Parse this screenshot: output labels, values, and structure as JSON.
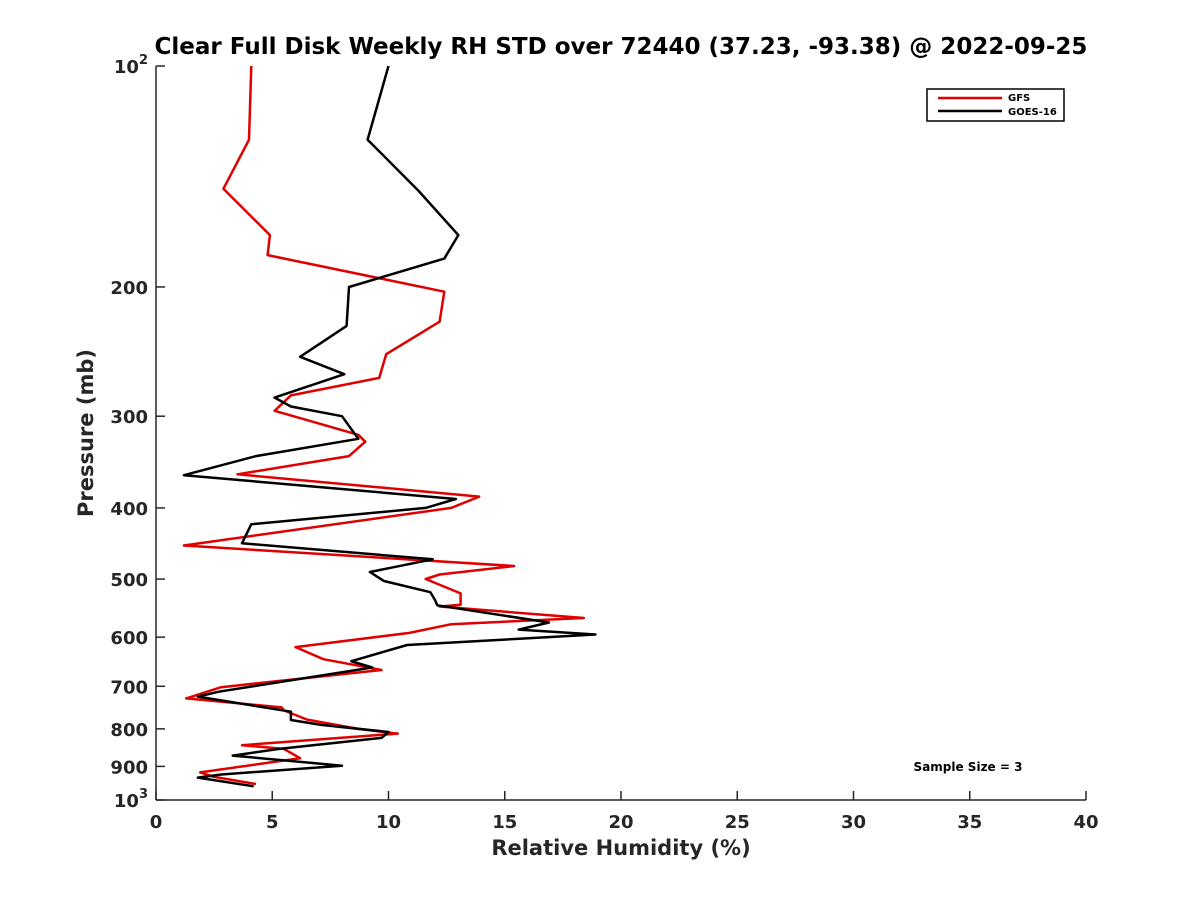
{
  "chart_data": {
    "type": "line",
    "title": "Clear Full Disk Weekly RH STD over 72440 (37.23, -93.38) @ 2022-09-25",
    "xlabel": "Relative Humidity (%)",
    "ylabel": "Pressure (mb)",
    "xlim": [
      0,
      40
    ],
    "ylim": [
      100,
      1000
    ],
    "yscale": "log",
    "y_reversed": true,
    "x_ticks": [
      "0",
      "5",
      "10",
      "15",
      "20",
      "25",
      "30",
      "35",
      "40"
    ],
    "y_ticks": [
      {
        "value": 100,
        "base": "10",
        "exp": "2"
      },
      {
        "value": 200,
        "label": "200"
      },
      {
        "value": 300,
        "label": "300"
      },
      {
        "value": 400,
        "label": "400"
      },
      {
        "value": 500,
        "label": "500"
      },
      {
        "value": 600,
        "label": "600"
      },
      {
        "value": 700,
        "label": "700"
      },
      {
        "value": 800,
        "label": "800"
      },
      {
        "value": 900,
        "label": "900"
      },
      {
        "value": 1000,
        "base": "10",
        "exp": "3"
      }
    ],
    "grid": false,
    "legend_position": "top-right",
    "annotation": "Sample Size = 3",
    "series": [
      {
        "name": "GFS",
        "color": "#e00000",
        "x": [
          4.1,
          4.0,
          2.9,
          4.9,
          4.8,
          12.4,
          12.2,
          9.9,
          9.6,
          5.8,
          5.1,
          8.7,
          9.0,
          8.3,
          3.5,
          13.9,
          12.7,
          1.2,
          15.4,
          12.2,
          11.6,
          13.1,
          13.1,
          12.2,
          18.4,
          12.7,
          10.9,
          6.0,
          7.2,
          9.7,
          2.8,
          1.3,
          5.4,
          5.5,
          6.5,
          8.7,
          10.4,
          3.7,
          5.5,
          6.2,
          1.9,
          2.5,
          4.3
        ],
        "y": [
          100,
          126,
          147,
          170,
          181,
          203,
          223,
          247,
          266,
          281,
          295,
          318,
          325,
          340,
          360,
          386,
          400,
          450,
          480,
          493,
          500,
          523,
          542,
          545,
          565,
          576,
          592,
          619,
          643,
          665,
          702,
          727,
          748,
          755,
          777,
          800,
          812,
          842,
          852,
          877,
          917,
          930,
          951
        ]
      },
      {
        "name": "GOES-16",
        "color": "#000000",
        "x": [
          10.0,
          9.1,
          11.3,
          13.0,
          12.4,
          8.3,
          8.2,
          6.2,
          8.1,
          5.1,
          5.8,
          8.0,
          8.7,
          4.3,
          1.2,
          12.9,
          11.6,
          4.1,
          3.7,
          11.9,
          9.2,
          9.8,
          11.8,
          12.0,
          12.1,
          16.9,
          15.6,
          18.9,
          10.8,
          8.4,
          9.3,
          2.7,
          1.8,
          5.8,
          5.8,
          7.1,
          10.0,
          9.7,
          5.3,
          3.3,
          8.0,
          2.8,
          1.8,
          4.2
        ],
        "y": [
          100,
          126,
          148,
          170,
          183,
          200,
          226,
          249,
          263,
          283,
          291,
          300,
          322,
          340,
          361,
          389,
          400,
          421,
          447,
          470,
          489,
          503,
          521,
          534,
          543,
          573,
          586,
          595,
          615,
          647,
          660,
          712,
          723,
          758,
          778,
          790,
          808,
          823,
          852,
          870,
          898,
          923,
          932,
          958
        ]
      }
    ]
  }
}
